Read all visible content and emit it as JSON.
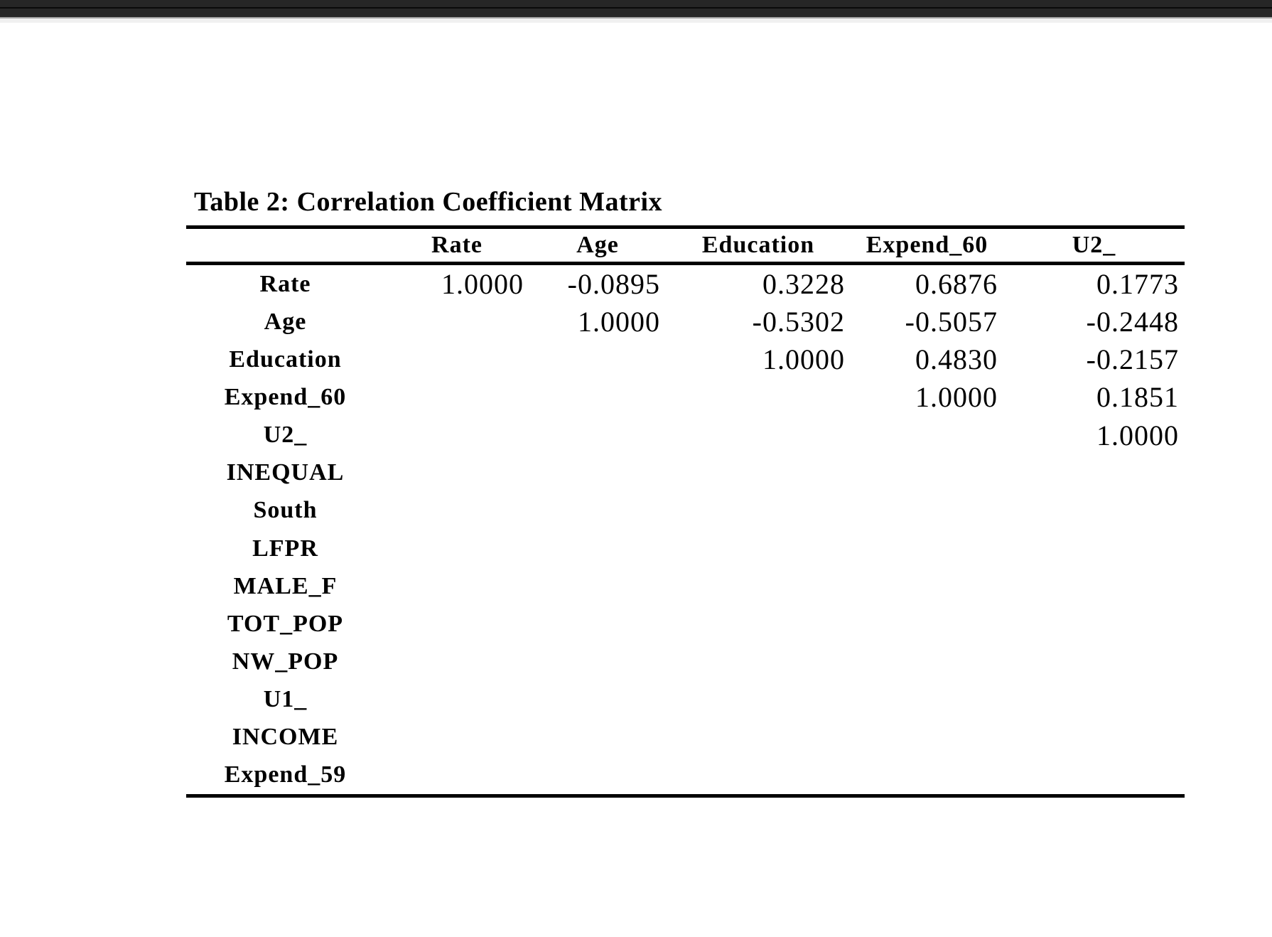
{
  "document": {
    "table": {
      "title": "Table 2: Correlation Coefficient Matrix",
      "column_headers": [
        "",
        "Rate",
        "Age",
        "Education",
        "Expend_60",
        "U2_"
      ],
      "rows": [
        {
          "label": "Rate",
          "values": [
            "1.0000",
            "-0.0895",
            "0.3228",
            "0.6876",
            "0.1773"
          ]
        },
        {
          "label": "Age",
          "values": [
            "",
            "1.0000",
            "-0.5302",
            "-0.5057",
            "-0.2448"
          ]
        },
        {
          "label": "Education",
          "values": [
            "",
            "",
            "1.0000",
            "0.4830",
            "-0.2157"
          ]
        },
        {
          "label": "Expend_60",
          "values": [
            "",
            "",
            "",
            "1.0000",
            "0.1851"
          ]
        },
        {
          "label": "U2_",
          "values": [
            "",
            "",
            "",
            "",
            "1.0000"
          ]
        },
        {
          "label": "INEQUAL",
          "values": [
            "",
            "",
            "",
            "",
            ""
          ]
        },
        {
          "label": "South",
          "values": [
            "",
            "",
            "",
            "",
            ""
          ]
        },
        {
          "label": "LFPR",
          "values": [
            "",
            "",
            "",
            "",
            ""
          ]
        },
        {
          "label": "MALE_F",
          "values": [
            "",
            "",
            "",
            "",
            ""
          ]
        },
        {
          "label": "TOT_POP",
          "values": [
            "",
            "",
            "",
            "",
            ""
          ]
        },
        {
          "label": "NW_POP",
          "values": [
            "",
            "",
            "",
            "",
            ""
          ]
        },
        {
          "label": "U1_",
          "values": [
            "",
            "",
            "",
            "",
            ""
          ]
        },
        {
          "label": "INCOME",
          "values": [
            "",
            "",
            "",
            "",
            ""
          ]
        },
        {
          "label": "Expend_59",
          "values": [
            "",
            "",
            "",
            "",
            ""
          ]
        }
      ]
    }
  },
  "colors": {
    "chrome_bar_top": "#262626",
    "chrome_seam": "#0a0a0a",
    "chrome_bar_bottom": "#272727",
    "chrome_hairline": "#a3a3a3",
    "chrome_strip": "#f0f0f0",
    "text": "#000000",
    "page_background": "#ffffff"
  }
}
